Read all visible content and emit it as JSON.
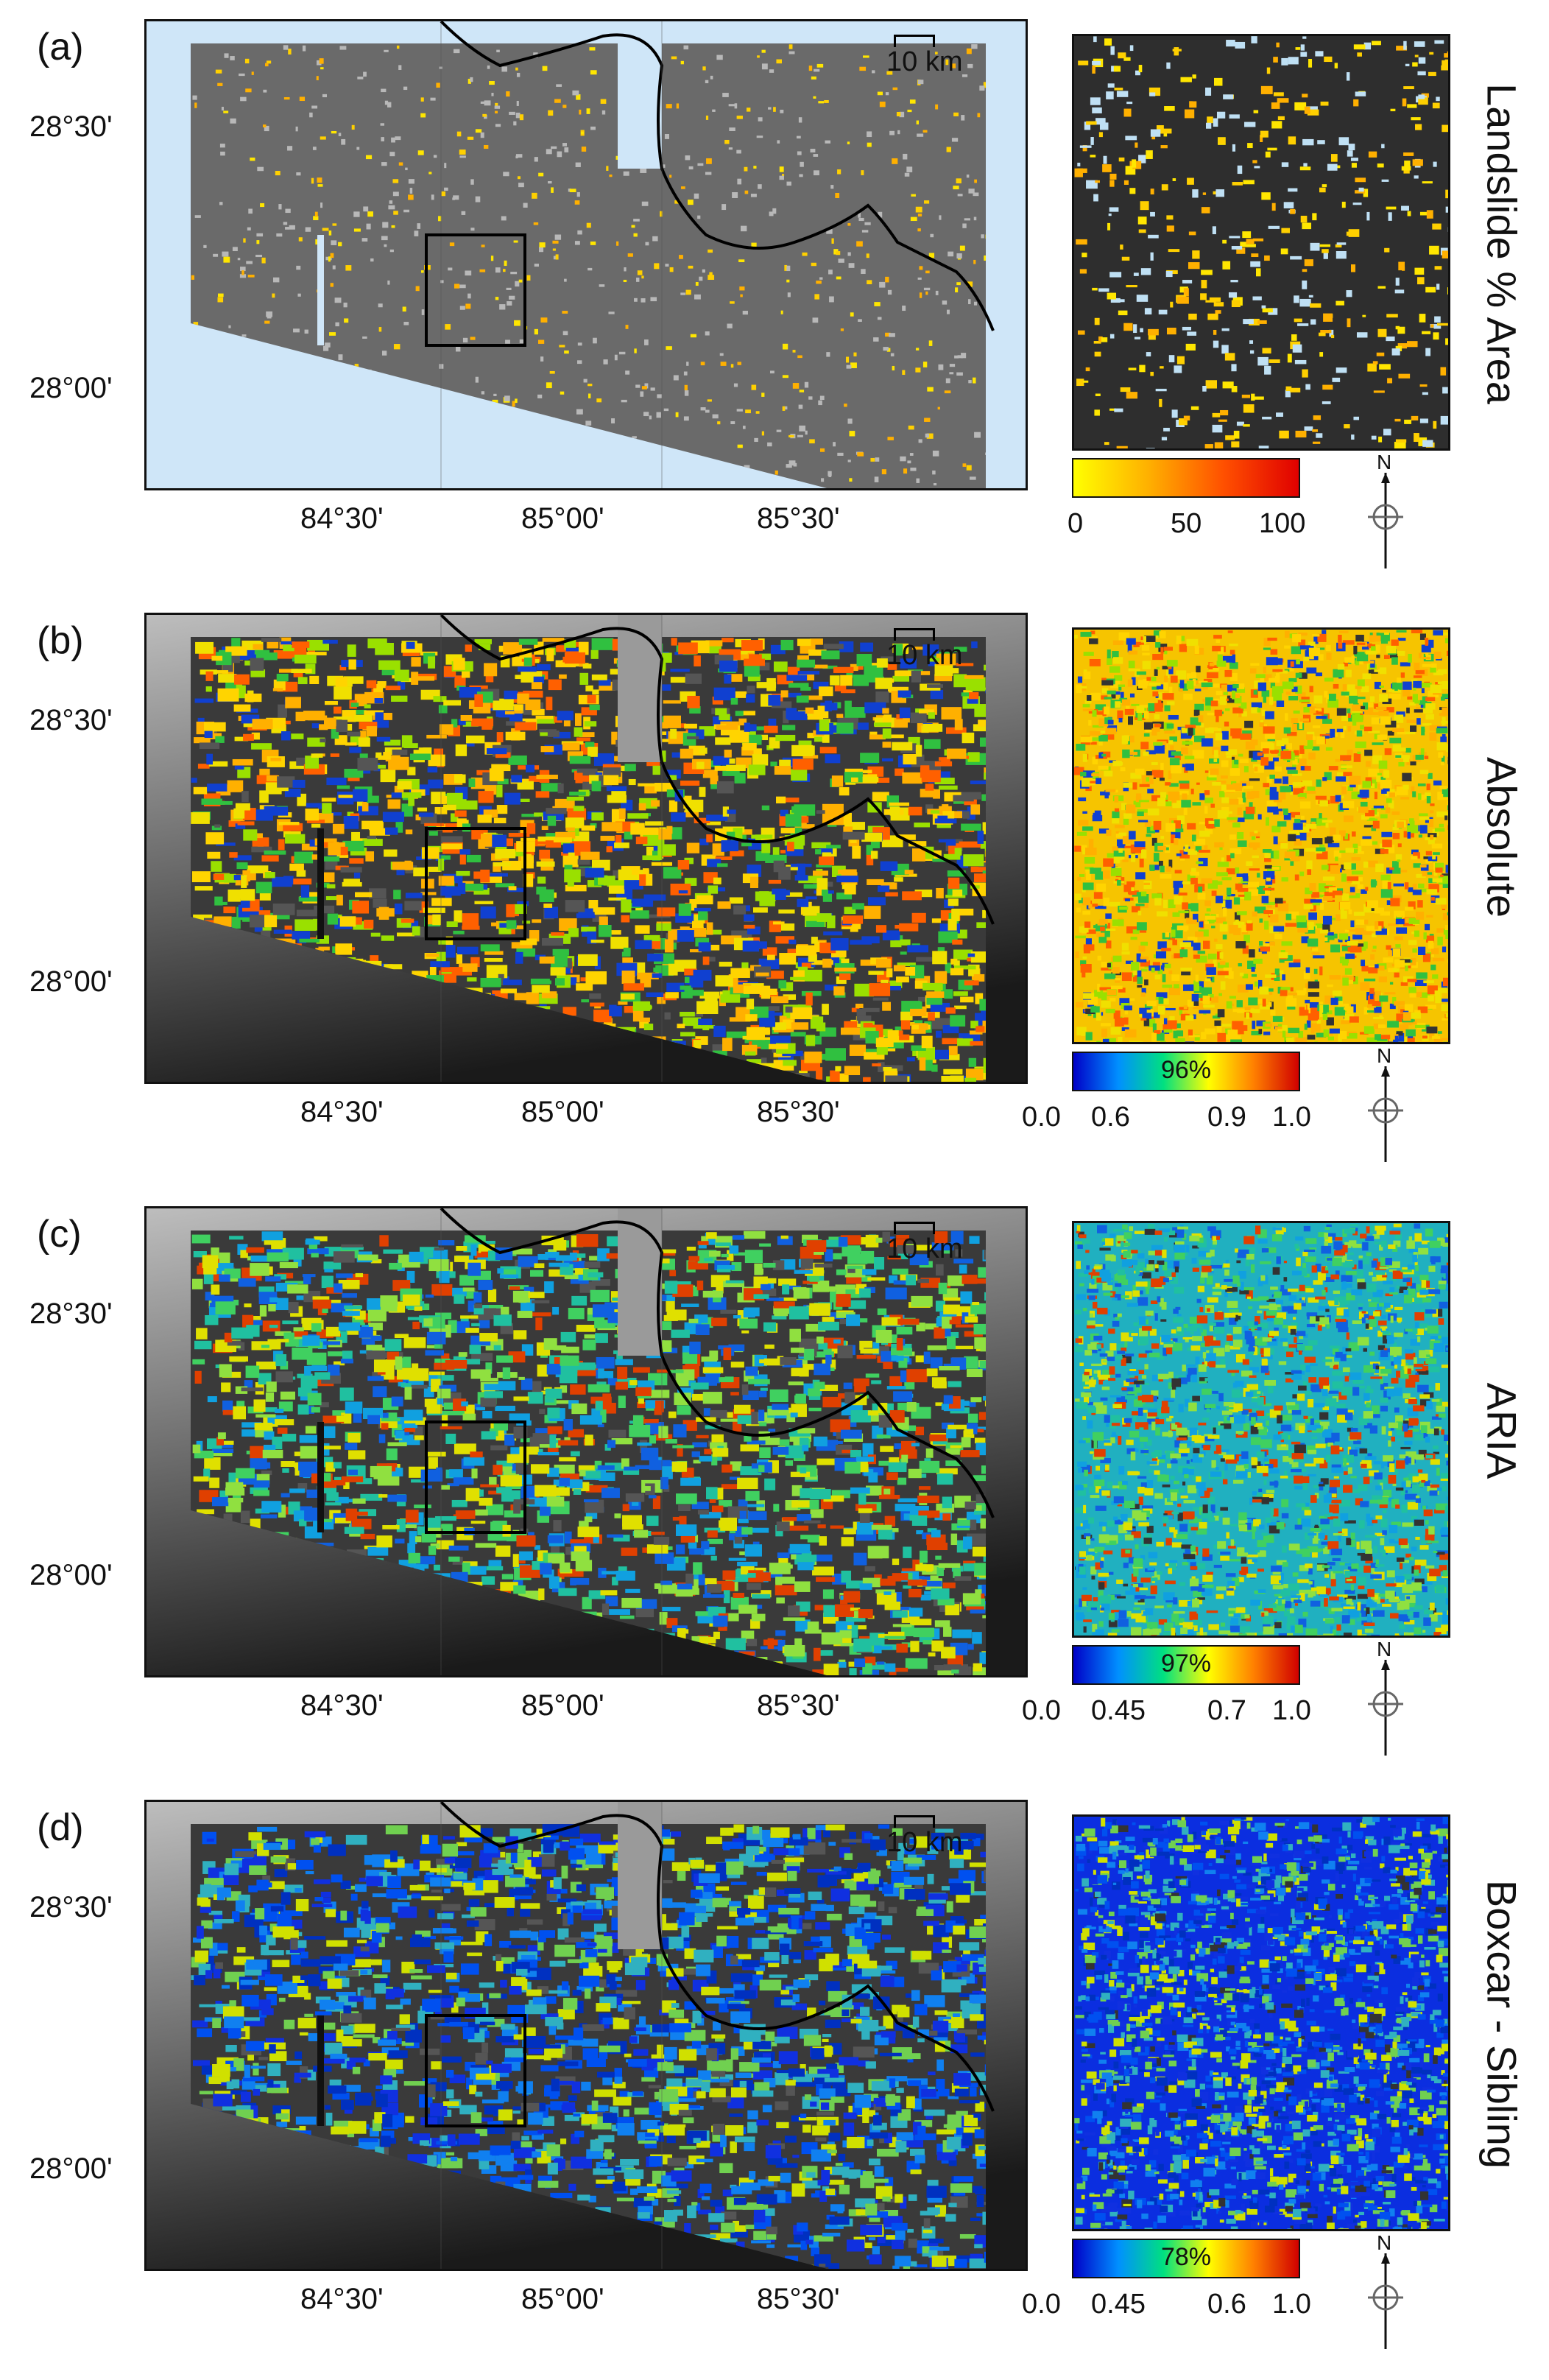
{
  "panels": [
    {
      "id": "a",
      "label": "(a)",
      "title": "Landslide % Area",
      "scale_bar": "10 km",
      "lat_labels": [
        "28°30'",
        "28°00'"
      ],
      "lon_labels": [
        "84°30'",
        "85°00'",
        "85°30'"
      ],
      "colorbar": {
        "gradient": [
          "#ffff00",
          "#ffb000",
          "#ff5000",
          "#e00000"
        ],
        "ticks": [
          "0",
          "50",
          "100"
        ],
        "percent": ""
      },
      "map_palette": [
        "#ffe600",
        "#ffd000",
        "#ffb000"
      ]
    },
    {
      "id": "b",
      "label": "(b)",
      "title": "Absolute",
      "scale_bar": "10 km",
      "lat_labels": [
        "28°30'",
        "28°00'"
      ],
      "lon_labels": [
        "84°30'",
        "85°00'",
        "85°30'"
      ],
      "colorbar": {
        "gradient": [
          "#0000c8",
          "#0090ff",
          "#00e080",
          "#ffff00",
          "#ff8000",
          "#d00000"
        ],
        "ticks": [
          "0.0",
          "0.6",
          "0.9",
          "1.0"
        ],
        "percent": "96%"
      },
      "map_palette": [
        "#ffd400",
        "#ffb000",
        "#f0e000",
        "#9ae000",
        "#30c040",
        "#1040d0",
        "#ff6000"
      ]
    },
    {
      "id": "c",
      "label": "(c)",
      "title": "ARIA",
      "scale_bar": "10 km",
      "lat_labels": [
        "28°30'",
        "28°00'"
      ],
      "lon_labels": [
        "84°30'",
        "85°00'",
        "85°30'"
      ],
      "colorbar": {
        "gradient": [
          "#0000c8",
          "#0090ff",
          "#00e080",
          "#ffff00",
          "#ff8000",
          "#d00000"
        ],
        "ticks": [
          "0.0",
          "0.45",
          "0.7",
          "1.0"
        ],
        "percent": "97%"
      },
      "map_palette": [
        "#10a0e0",
        "#20c0a0",
        "#40d060",
        "#1060e0",
        "#90e040",
        "#e0e000",
        "#e04000"
      ]
    },
    {
      "id": "d",
      "label": "(d)",
      "title": "Boxcar - Sibling",
      "scale_bar": "10 km",
      "lat_labels": [
        "28°30'",
        "28°00'"
      ],
      "lon_labels": [
        "84°30'",
        "85°00'",
        "85°30'"
      ],
      "colorbar": {
        "gradient": [
          "#0000c8",
          "#0090ff",
          "#00e080",
          "#ffff00",
          "#ff8000",
          "#d00000"
        ],
        "ticks": [
          "0.0",
          "0.45",
          "0.6",
          "1.0"
        ],
        "percent": "78%"
      },
      "map_palette": [
        "#1030e0",
        "#0050f0",
        "#1080f0",
        "#0030c0",
        "#30b0c0",
        "#70d050",
        "#d0e000"
      ]
    }
  ],
  "north_label": "N"
}
